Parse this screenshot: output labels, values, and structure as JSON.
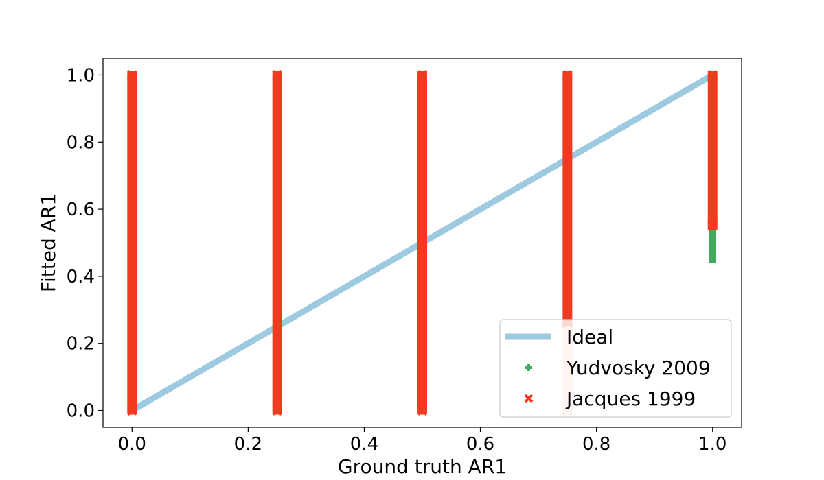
{
  "chart_data": {
    "type": "scatter",
    "xlabel": "Ground truth AR1",
    "ylabel": "Fitted AR1",
    "xlim": [
      -0.05,
      1.05
    ],
    "ylim": [
      -0.05,
      1.05
    ],
    "xticks": [
      "0.0",
      "0.2",
      "0.4",
      "0.6",
      "0.8",
      "1.0"
    ],
    "yticks": [
      "0.0",
      "0.2",
      "0.4",
      "0.6",
      "0.8",
      "1.0"
    ],
    "grid": false,
    "legend_position": "lower-right",
    "series": [
      {
        "name": "Ideal",
        "kind": "line",
        "color": "#9ecae1",
        "x": [
          0.0,
          1.0
        ],
        "y": [
          0.0,
          1.0
        ]
      },
      {
        "name": "Yudvosky 2009",
        "kind": "marker-plus",
        "color": "#41ab5d",
        "ranges": [
          {
            "x": 0.0,
            "y_min": 0.0,
            "y_max": 1.0
          },
          {
            "x": 1.0,
            "y_min": 0.45,
            "y_max": 0.56
          }
        ]
      },
      {
        "name": "Jacques 1999",
        "kind": "marker-x",
        "color": "#f03b20",
        "ranges": [
          {
            "x": 0.0,
            "y_min": 0.0,
            "y_max": 1.0
          },
          {
            "x": 0.25,
            "y_min": 0.0,
            "y_max": 1.0
          },
          {
            "x": 0.5,
            "y_min": 0.0,
            "y_max": 1.0
          },
          {
            "x": 0.75,
            "y_min": 0.0,
            "y_max": 1.0
          },
          {
            "x": 1.0,
            "y_min": 0.55,
            "y_max": 1.0
          }
        ],
        "faded_range": {
          "x": 0.75,
          "y_min": 0.0,
          "y_max": 0.25
        }
      }
    ]
  }
}
